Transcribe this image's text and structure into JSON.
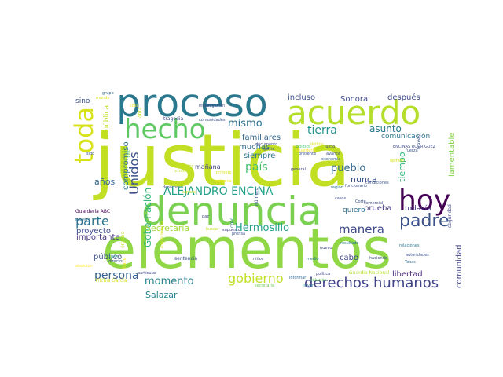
{
  "words": [
    {
      "text": "justicia",
      "color": "#c2df23",
      "rot": 0
    },
    {
      "text": "elementos",
      "color": "#8fd744",
      "rot": 0
    },
    {
      "text": "denuncia",
      "color": "#7ad151",
      "rot": 0
    },
    {
      "text": "proceso",
      "color": "#2a788e",
      "rot": 0
    },
    {
      "text": "acuerdo",
      "color": "#b5de2b",
      "rot": 0
    },
    {
      "text": "hecho",
      "color": "#5ec962",
      "rot": 0
    },
    {
      "text": "toda",
      "color": "#d8e219",
      "rot": -90
    },
    {
      "text": "hoy",
      "color": "#440154",
      "rot": 0
    },
    {
      "text": "padre",
      "color": "#3b528b",
      "rot": 0
    },
    {
      "text": "parte",
      "color": "#2c728e",
      "rot": 0
    },
    {
      "text": "derechos humanos",
      "color": "#414487",
      "rot": 0
    },
    {
      "text": "gobierno",
      "color": "#c2df23",
      "rot": 0
    },
    {
      "text": "momento",
      "color": "#26828e",
      "rot": 0
    },
    {
      "text": "mismo",
      "color": "#2c728e",
      "rot": 0
    },
    {
      "text": "tierra",
      "color": "#21918c",
      "rot": 0
    },
    {
      "text": "país",
      "color": "#46c06f",
      "rot": 0
    },
    {
      "text": "pueblo",
      "color": "#31688e",
      "rot": 0
    },
    {
      "text": "manera",
      "color": "#3e4a89",
      "rot": 0
    },
    {
      "text": "persona",
      "color": "#355f8d",
      "rot": 0
    },
    {
      "text": "Unidos",
      "color": "#3b528b",
      "rot": -90
    },
    {
      "text": "ALEJANDRO ENCINA",
      "color": "#1fa188",
      "rot": 0
    },
    {
      "text": "Hermosillo",
      "color": "#1f9e89",
      "rot": 0
    },
    {
      "text": "asunto",
      "color": "#29798e",
      "rot": 0
    },
    {
      "text": "años",
      "color": "#31688e",
      "rot": 0
    },
    {
      "text": "Salazar",
      "color": "#25838e",
      "rot": 0
    },
    {
      "text": "Gobernación",
      "color": "#35b779",
      "rot": -90
    },
    {
      "text": "Secretaría",
      "color": "#a0da39",
      "rot": 0
    },
    {
      "text": "nunca",
      "color": "#3b528b",
      "rot": 0
    },
    {
      "text": "siempre",
      "color": "#2a788e",
      "rot": 0
    },
    {
      "text": "prueba",
      "color": "#443983",
      "rot": 0
    },
    {
      "text": "familiares",
      "color": "#31688e",
      "rot": 0
    },
    {
      "text": "muchas",
      "color": "#2d708e",
      "rot": 0
    },
    {
      "text": "mañana",
      "color": "#414487",
      "rot": 0
    },
    {
      "text": "importante",
      "color": "#46327e",
      "rot": 0
    },
    {
      "text": "proyecto",
      "color": "#3e4a89",
      "rot": 0
    },
    {
      "text": "público",
      "color": "#3b528b",
      "rot": 0
    },
    {
      "text": "libertad",
      "color": "#482878",
      "rot": 0
    },
    {
      "text": "cabo",
      "color": "#414487",
      "rot": 0
    },
    {
      "text": "quiero",
      "color": "#2d708e",
      "rot": 0
    },
    {
      "text": "todavía",
      "color": "#46327e",
      "rot": 0
    },
    {
      "text": "Sonora",
      "color": "#3e4a89",
      "rot": 0
    },
    {
      "text": "incluso",
      "color": "#3b528b",
      "rot": 0
    },
    {
      "text": "después",
      "color": "#3e4a89",
      "rot": 0
    },
    {
      "text": "comunicación",
      "color": "#2c728e",
      "rot": 0
    },
    {
      "text": "tiempo",
      "color": "#31b57b",
      "rot": -90
    },
    {
      "text": "lamentable",
      "color": "#84d44b",
      "rot": -90
    },
    {
      "text": "comunidad",
      "color": "#414487",
      "rot": -90
    },
    {
      "text": "compromiso",
      "color": "#2a788e",
      "rot": -90
    },
    {
      "text": "República",
      "color": "#c2df23",
      "rot": -90
    },
    {
      "text": "sino",
      "color": "#3b528b",
      "rot": 0
    },
    {
      "text": "Guardería ABC",
      "color": "#440154",
      "rot": 0
    },
    {
      "text": "temas",
      "color": "#2c728e",
      "rot": 0
    },
    {
      "text": "atención",
      "color": "#fde725",
      "rot": 0
    },
    {
      "text": "Vilchis García",
      "color": "#d8e219",
      "rot": 0
    },
    {
      "text": "1955",
      "color": "#21918c",
      "rot": 0
    },
    {
      "text": "director",
      "color": "#3b528b",
      "rot": 0
    },
    {
      "text": "particular",
      "color": "#3e4a89",
      "rot": 0
    },
    {
      "text": "sentencia",
      "color": "#3b528b",
      "rot": 0
    },
    {
      "text": "niños",
      "color": "#3e4a89",
      "rot": 0
    },
    {
      "text": "secretaría",
      "color": "#6ece58",
      "rot": 0
    },
    {
      "text": "Guardia Nacional",
      "color": "#b5de2b",
      "rot": 0
    },
    {
      "text": "haciendo",
      "color": "#3b528b",
      "rot": 0
    },
    {
      "text": "Texas",
      "color": "#31688e",
      "rot": 0
    },
    {
      "text": "autoridades",
      "color": "#3b528b",
      "rot": 0
    },
    {
      "text": "relaciones",
      "color": "#2a788e",
      "rot": 0
    },
    {
      "text": "solución",
      "color": "#5ec962",
      "rot": 0
    },
    {
      "text": "condiciones",
      "color": "#3b528b",
      "rot": 0
    },
    {
      "text": "resultado",
      "color": "#25838e",
      "rot": 0
    },
    {
      "text": "política",
      "color": "#3e4a89",
      "rot": 0
    },
    {
      "text": "informar",
      "color": "#31688e",
      "rot": 0
    },
    {
      "text": "llevar",
      "color": "#2c728e",
      "rot": 0
    },
    {
      "text": "nuevo",
      "color": "#3e4a89",
      "rot": 0
    },
    {
      "text": "medio",
      "color": "#2a788e",
      "rot": 0
    },
    {
      "text": "número",
      "color": "#3b528b",
      "rot": -90
    },
    {
      "text": "creo",
      "color": "#2d708e",
      "rot": -90
    },
    {
      "text": "supuesto",
      "color": "#414487",
      "rot": 0
    },
    {
      "text": "prensa",
      "color": "#3b528b",
      "rot": 0
    },
    {
      "text": "buscar",
      "color": "#c2df23",
      "rot": 0
    },
    {
      "text": "paz",
      "color": "#3e4a89",
      "rot": 0
    },
    {
      "text": "agrario",
      "color": "#c2df23",
      "rot": 0
    },
    {
      "text": "derecho",
      "color": "#3b528b",
      "rot": 0
    },
    {
      "text": "indígena",
      "color": "#fde725",
      "rot": 0
    },
    {
      "text": "situación",
      "color": "#c2df23",
      "rot": 0
    },
    {
      "text": "primero",
      "color": "#d8e219",
      "rot": 0
    },
    {
      "text": "primera",
      "color": "#c2df23",
      "rot": 0
    },
    {
      "text": "comunidades",
      "color": "#3b528b",
      "rot": 0
    },
    {
      "text": "tragedia",
      "color": "#3e4a89",
      "rot": 0
    },
    {
      "text": "investigación",
      "color": "#3e4a89",
      "rot": 0
    },
    {
      "text": "grupo",
      "color": "#31688e",
      "rot": 0
    },
    {
      "text": "mundo",
      "color": "#d8e219",
      "rot": 0
    },
    {
      "text": "cosa",
      "color": "#fde725",
      "rot": 0
    },
    {
      "text": "sido",
      "color": "#3b528b",
      "rot": 0
    },
    {
      "text": "documento",
      "color": "#3e4a89",
      "rot": 0
    },
    {
      "text": "gente",
      "color": "#3b528b",
      "rot": 0
    },
    {
      "text": "político",
      "color": "#46c06f",
      "rot": 0
    },
    {
      "text": "juicio",
      "color": "#3e4a89",
      "rot": 0
    },
    {
      "text": "presente",
      "color": "#3b528b",
      "rot": 0
    },
    {
      "text": "avance",
      "color": "#3b528b",
      "rot": 0
    },
    {
      "text": "general",
      "color": "#414487",
      "rot": 0
    },
    {
      "text": "economía",
      "color": "#31688e",
      "rot": 0
    },
    {
      "text": "ENCINAS RODRÍGUEZ",
      "color": "#3e4a89",
      "rot": 0
    },
    {
      "text": "opinión",
      "color": "#d8e219",
      "rot": 0
    },
    {
      "text": "Guardería",
      "color": "#fde725",
      "rot": 0
    },
    {
      "text": "delitos",
      "color": "#d8e219",
      "rot": 0
    },
    {
      "text": "fuerza",
      "color": "#3b528b",
      "rot": 0
    },
    {
      "text": "región",
      "color": "#2a788e",
      "rot": 0
    },
    {
      "text": "Corte",
      "color": "#3b528b",
      "rot": 0
    },
    {
      "text": "comercial",
      "color": "#3e4a89",
      "rot": 0
    },
    {
      "text": "funcionario",
      "color": "#3b528b",
      "rot": 0
    },
    {
      "text": "casos",
      "color": "#3e4a89",
      "rot": 0
    },
    {
      "text": "seguridad",
      "color": "#3e4a89",
      "rot": -90
    },
    {
      "text": "experiencia",
      "color": "#d8e219",
      "rot": -90
    },
    {
      "text": "órgano",
      "color": "#c2df23",
      "rot": -90
    },
    {
      "text": "hace",
      "color": "#fde725",
      "rot": -90
    },
    {
      "text": "vez",
      "color": "#6ece58",
      "rot": -90
    },
    {
      "text": "obra",
      "color": "#c2df23",
      "rot": -90
    },
    {
      "text": "través",
      "color": "#3b528b",
      "rot": -90
    }
  ]
}
